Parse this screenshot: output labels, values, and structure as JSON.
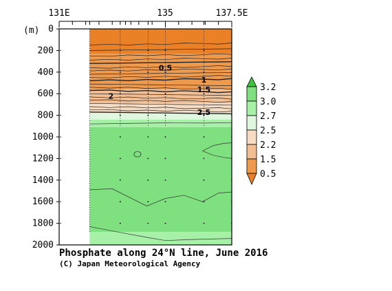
{
  "chart_data": {
    "type": "heatmap",
    "title": "Phosphate along 24°N line, June 2016",
    "credit": "(C) Japan Meteorological Agency",
    "ylabel": "(m)",
    "x_ticks": [
      "131E",
      "135",
      "137.5E"
    ],
    "y_ticks": [
      "0",
      "200",
      "400",
      "600",
      "800",
      "1000",
      "1200",
      "1400",
      "1600",
      "1800",
      "2000"
    ],
    "xlim_lon": [
      131,
      137.5
    ],
    "ylim_depth": [
      0,
      2000
    ],
    "data_lon_range": [
      132.15,
      137.5
    ],
    "contour_labels": [
      {
        "text": "0.5",
        "lon": 135.0,
        "depth": 360
      },
      {
        "text": "1",
        "lon": 136.45,
        "depth": 470
      },
      {
        "text": "1.5",
        "lon": 136.45,
        "depth": 560
      },
      {
        "text": "2",
        "lon": 132.95,
        "depth": 620
      },
      {
        "text": "2.5",
        "lon": 136.45,
        "depth": 770
      }
    ],
    "colorbar": {
      "levels": [
        "3.2",
        "3.0",
        "2.7",
        "2.5",
        "2.2",
        "1.5",
        "0.5"
      ],
      "colors": [
        "#3fc23f",
        "#7ee07e",
        "#a7f0a7",
        "#dff7df",
        "#f7dcc4",
        "#f3bf92",
        "#ee9a4e",
        "#ea8126"
      ]
    },
    "color_bands": [
      {
        "from_depth": 0,
        "to_depth": 230,
        "value_range": "<0.5",
        "color": "#ea8126"
      },
      {
        "from_depth": 230,
        "to_depth": 560,
        "value_range": "0.5-1.5",
        "color": "#ee9a4e"
      },
      {
        "from_depth": 560,
        "to_depth": 690,
        "value_range": "1.5-2.2",
        "color": "#f3bf92"
      },
      {
        "from_depth": 690,
        "to_depth": 780,
        "value_range": "2.2-2.5",
        "color": "#f7dcc4"
      },
      {
        "from_depth": 780,
        "to_depth": 840,
        "value_range": "2.5-2.7",
        "color": "#dff7df"
      },
      {
        "from_depth": 840,
        "to_depth": 910,
        "value_range": "2.7-3.0",
        "color": "#a7f0a7"
      },
      {
        "from_depth": 910,
        "to_depth": 1880,
        "value_range": "3.0-3.2",
        "color": "#7ee07e"
      },
      {
        "from_depth": 1880,
        "to_depth": 2000,
        "value_range": "2.7-3.0",
        "color": "#a7f0a7"
      }
    ],
    "station_lons": [
      132.15,
      133.3,
      134.35,
      135.0,
      136.45,
      137.5
    ],
    "grid": "dotted"
  }
}
